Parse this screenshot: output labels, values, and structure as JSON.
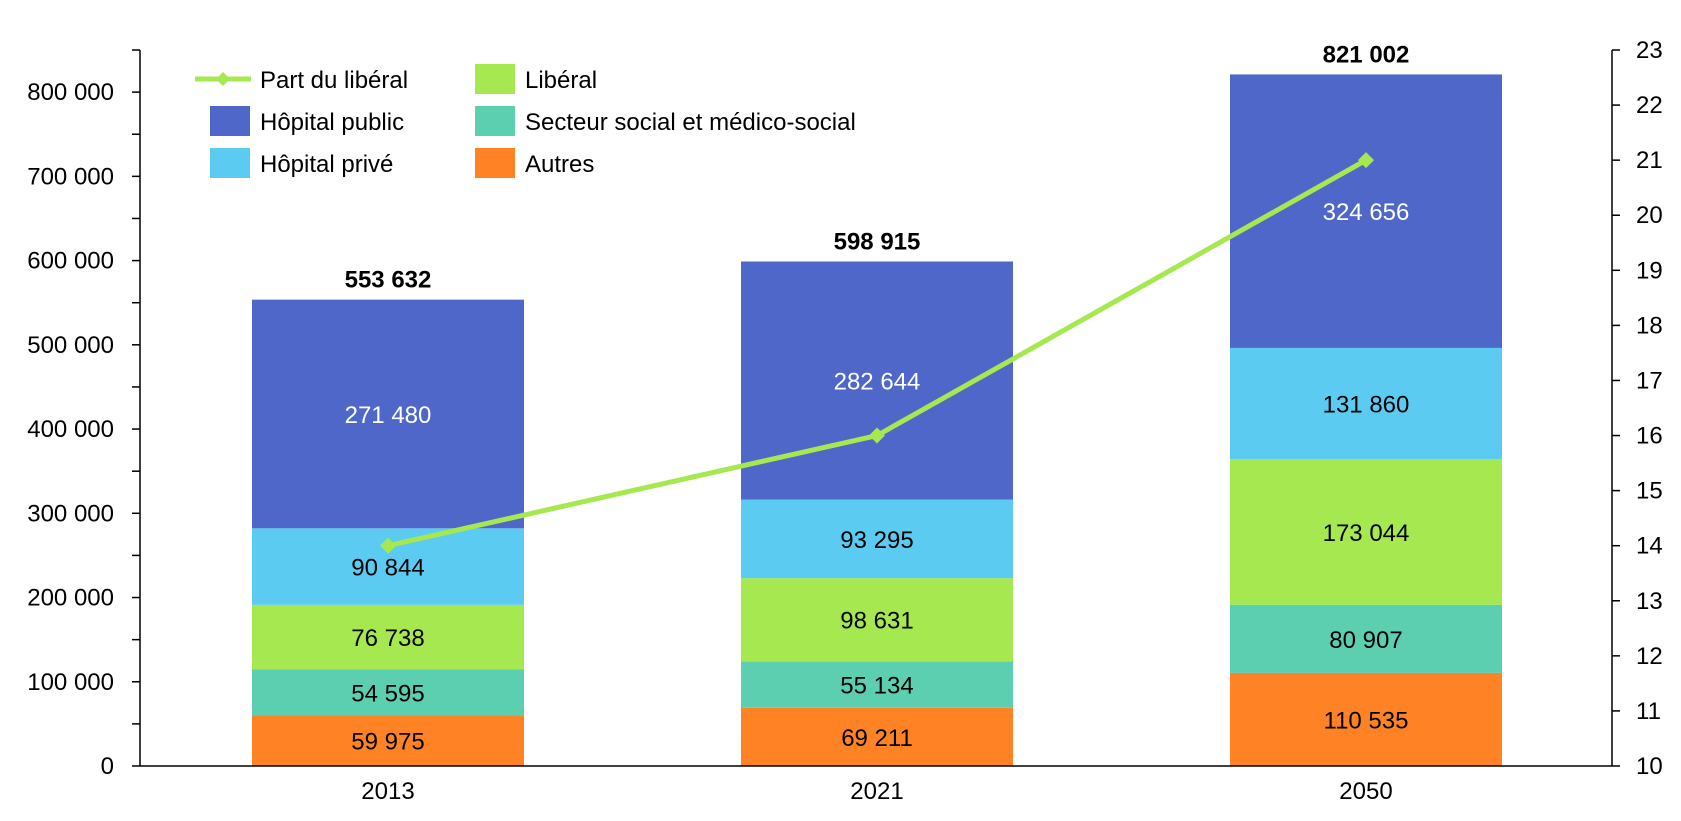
{
  "chart_data": {
    "type": "bar",
    "stacked": true,
    "categories": [
      "2013",
      "2021",
      "2050"
    ],
    "series": [
      {
        "name": "Autres",
        "color": "#FF8325",
        "labelColor": "#000000",
        "values": [
          59975,
          69211,
          110535
        ],
        "labels": [
          "59 975",
          "69 211",
          "110 535"
        ]
      },
      {
        "name": "Secteur social et médico-social",
        "color": "#5CCFB0",
        "labelColor": "#000000",
        "values": [
          54595,
          55134,
          80907
        ],
        "labels": [
          "54 595",
          "55 134",
          "80 907"
        ]
      },
      {
        "name": "Libéral",
        "color": "#A6E84F",
        "labelColor": "#000000",
        "values": [
          76738,
          98631,
          173044
        ],
        "labels": [
          "76 738",
          "98 631",
          "173 044"
        ]
      },
      {
        "name": "Hôpital privé",
        "color": "#5BCBF2",
        "labelColor": "#000000",
        "values": [
          90844,
          93295,
          131860
        ],
        "labels": [
          "90 844",
          "93 295",
          "131 860"
        ]
      },
      {
        "name": "Hôpital public",
        "color": "#4F67C8",
        "labelColor": "#FFFFFF",
        "values": [
          271480,
          282644,
          324656
        ],
        "labels": [
          "271 480",
          "282 644",
          "324 656"
        ]
      }
    ],
    "totals": [
      553632,
      598915,
      821002
    ],
    "total_labels": [
      "553 632",
      "598 915",
      "821 002"
    ],
    "line_series": {
      "name": "Part du libéral",
      "color": "#A6E84F",
      "axis": "right",
      "values": [
        14.0,
        16.0,
        21.0
      ]
    },
    "y_left": {
      "min": 0,
      "max": 850000,
      "ticks": [
        0,
        100000,
        200000,
        300000,
        400000,
        500000,
        600000,
        700000,
        800000
      ],
      "tick_labels": [
        "0",
        "100 000",
        "200 000",
        "300 000",
        "400 000",
        "500 000",
        "600 000",
        "700 000",
        "800 000"
      ]
    },
    "y_right": {
      "min": 10,
      "max": 23,
      "ticks": [
        10,
        11,
        12,
        13,
        14,
        15,
        16,
        17,
        18,
        19,
        20,
        21,
        22,
        23
      ],
      "tick_labels": [
        "10",
        "11",
        "12",
        "13",
        "14",
        "15",
        "16",
        "17",
        "18",
        "19",
        "20",
        "21",
        "22",
        "23"
      ]
    },
    "legend": {
      "placement": "top-left",
      "entries": [
        "Part du libéral",
        "Libéral",
        "Hôpital public",
        "Secteur social et médico-social",
        "Hôpital privé",
        "Autres"
      ]
    },
    "grid": false,
    "title": "",
    "xlabel": "",
    "ylabel": ""
  }
}
